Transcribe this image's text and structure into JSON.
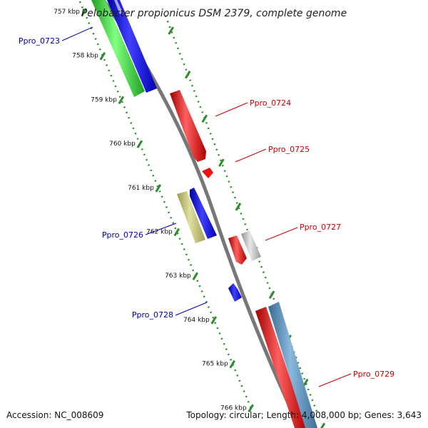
{
  "title": "Pelobacter propionicus DSM 2379, complete genome",
  "colors": {
    "backbone": "#888888",
    "tick": "#2e8b2e",
    "label_forward": "#cc0000",
    "label_reverse": "#0000aa"
  },
  "ticks": [
    {
      "label": "757 kbp"
    },
    {
      "label": "758 kbp"
    },
    {
      "label": "759 kbp"
    },
    {
      "label": "760 kbp"
    },
    {
      "label": "761 kbp"
    },
    {
      "label": "762 kbp"
    },
    {
      "label": "763 kbp"
    },
    {
      "label": "764 kbp"
    },
    {
      "label": "765 kbp"
    },
    {
      "label": "766 kbp"
    }
  ],
  "genes": [
    {
      "id": "Ppro_0723",
      "strand": "reverse",
      "color": "#0000ff",
      "label_color": "#0000aa"
    },
    {
      "id": "Ppro_0724",
      "strand": "forward",
      "color": "#ff0000",
      "label_color": "#cc0000"
    },
    {
      "id": "Ppro_0725",
      "strand": "forward",
      "color": "#ff0000",
      "label_color": "#cc0000"
    },
    {
      "id": "Ppro_0726",
      "strand": "reverse",
      "color": "#0000ff",
      "label_color": "#0000aa"
    },
    {
      "id": "Ppro_0727",
      "strand": "forward",
      "color": "#ff0000",
      "label_color": "#cc0000"
    },
    {
      "id": "Ppro_0728",
      "strand": "reverse",
      "color": "#0000ff",
      "label_color": "#0000aa"
    },
    {
      "id": "Ppro_0729",
      "strand": "forward",
      "color": "#ff0000",
      "label_color": "#cc0000"
    }
  ],
  "footer": {
    "accession": "Accession: NC_008609",
    "topology": "Topology: circular; Length: 4,008,000 bp; Genes: 3,643"
  }
}
